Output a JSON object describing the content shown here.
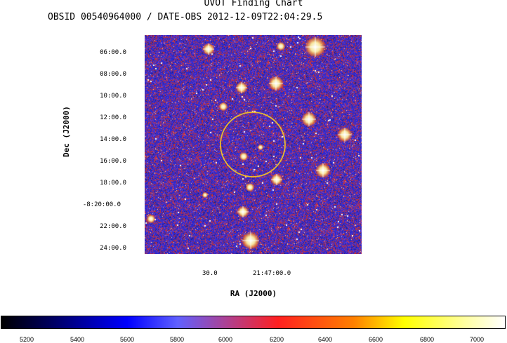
{
  "chart_data": {
    "type": "heatmap",
    "title": "UVOT Finding Chart",
    "subtitle": "OBSID 00540964000 / DATE-OBS 2012-12-09T22:04:29.5",
    "xlabel": "RA (J2000)",
    "ylabel": "Dec (J2000)",
    "x_ticks": [
      "30.0",
      "21:47:00.0"
    ],
    "y_ticks": [
      "06:00.0",
      "08:00.0",
      "10:00.0",
      "12:00.0",
      "14:00.0",
      "16:00.0",
      "18:00.0",
      "-8:20:00.0",
      "22:00.0",
      "24:00.0"
    ],
    "colorbar": {
      "ticks": [
        "5200",
        "5400",
        "5600",
        "5800",
        "6000",
        "6200",
        "6400",
        "6600",
        "6800",
        "7000"
      ],
      "range": [
        5100,
        7120
      ]
    },
    "overlay": {
      "shape": "circle",
      "color": "#e8b830"
    },
    "colors": {
      "background": "#3a2fc0",
      "speckle_red": "#d23a2a",
      "speckle_blue": "#2a2ad8",
      "star": "#ffffff"
    }
  }
}
